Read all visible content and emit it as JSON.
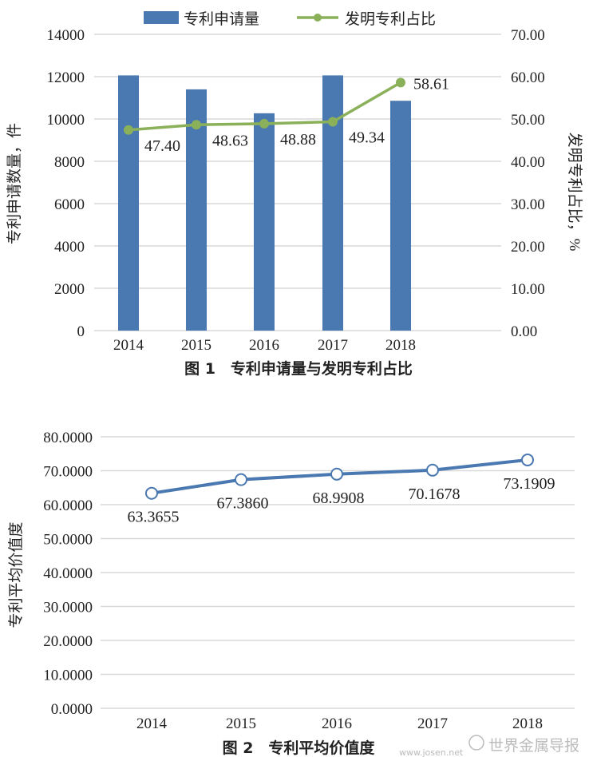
{
  "chart_data": [
    {
      "type": "bar+line",
      "caption": "图 1　专利申请量与发明专利占比",
      "categories": [
        "2014",
        "2015",
        "2016",
        "2017",
        "2018"
      ],
      "ylabel": "专利申请数量，件",
      "y2label": "发明专利占比，%",
      "ylim": [
        0,
        14000
      ],
      "yticks": [
        "0",
        "2000",
        "4000",
        "6000",
        "8000",
        "10000",
        "12000",
        "14000"
      ],
      "y2lim": [
        0,
        70
      ],
      "y2ticks": [
        "0.00",
        "10.00",
        "20.00",
        "30.00",
        "40.00",
        "50.00",
        "60.00",
        "70.00"
      ],
      "grid": true,
      "legend": "top",
      "series": [
        {
          "name": "专利申请量",
          "type": "bar",
          "color": "#4a78b0",
          "values": [
            12060,
            11400,
            10270,
            12060,
            10860
          ]
        },
        {
          "name": "发明专利占比",
          "type": "line",
          "color": "#8bb05a",
          "values": [
            47.4,
            48.63,
            48.88,
            49.34,
            58.61
          ],
          "labels": [
            "47.40",
            "48.63",
            "48.88",
            "49.34",
            "58.61"
          ]
        }
      ]
    },
    {
      "type": "line",
      "caption": "图 2　专利平均价值度",
      "categories": [
        "2014",
        "2015",
        "2016",
        "2017",
        "2018"
      ],
      "ylabel": "专利平均价值度",
      "ylim": [
        0,
        80
      ],
      "yticks": [
        "0.0000",
        "10.0000",
        "20.0000",
        "30.0000",
        "40.0000",
        "50.0000",
        "60.0000",
        "70.0000",
        "80.0000"
      ],
      "grid": true,
      "series": [
        {
          "type": "line",
          "color": "#4a78b0",
          "values": [
            63.3655,
            67.386,
            68.9908,
            70.1678,
            73.1909
          ],
          "labels": [
            "63.3655",
            "67.3860",
            "68.9908",
            "70.1678",
            "73.1909"
          ]
        }
      ]
    }
  ],
  "watermark": {
    "name": "世界金属导报",
    "url": "www.josen.net"
  }
}
